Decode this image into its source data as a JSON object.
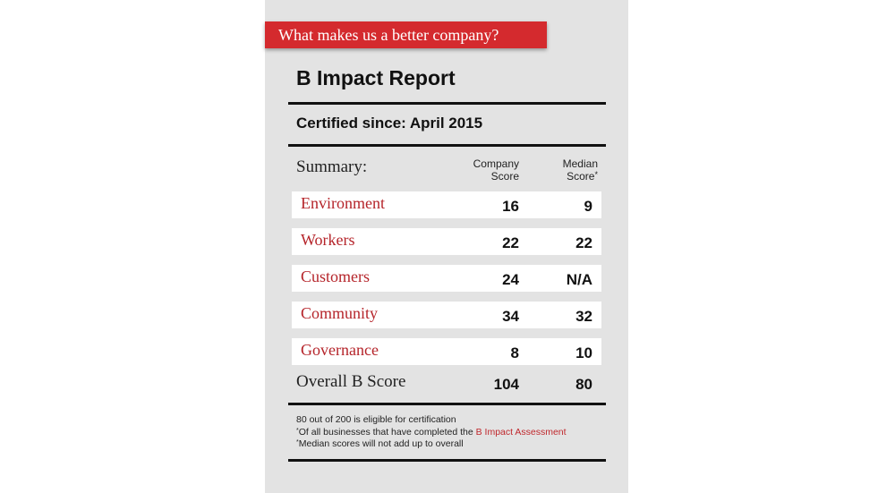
{
  "banner": "What makes us a better company?",
  "report": {
    "title": "B Impact Report",
    "certified_label": "Certified since:",
    "certified_value": "April 2015"
  },
  "summary": {
    "label": "Summary:",
    "company_header_line1": "Company",
    "company_header_line2": "Score",
    "median_header_line1": "Median",
    "median_header_line2": "Score",
    "median_marker": "*",
    "rows": [
      {
        "category": "Environment",
        "company": "16",
        "median": "9"
      },
      {
        "category": "Workers",
        "company": "22",
        "median": "22"
      },
      {
        "category": "Customers",
        "company": "24",
        "median": "N/A"
      },
      {
        "category": "Community",
        "company": "34",
        "median": "32"
      },
      {
        "category": "Governance",
        "company": "8",
        "median": "10"
      }
    ],
    "overall": {
      "label": "Overall B Score",
      "company": "104",
      "median": "80"
    }
  },
  "notes": {
    "line1": "80 out of 200 is eligible for certification",
    "line2_marker": "*",
    "line2_text": "Of all businesses that have completed the ",
    "line2_link": "B Impact Assessment",
    "line3_marker": "*",
    "line3_text": "Median scores will not add up to overall"
  },
  "colors": {
    "accent": "#d42a2e",
    "category_text": "#b5242a",
    "card_background": "#e3e3e3"
  }
}
